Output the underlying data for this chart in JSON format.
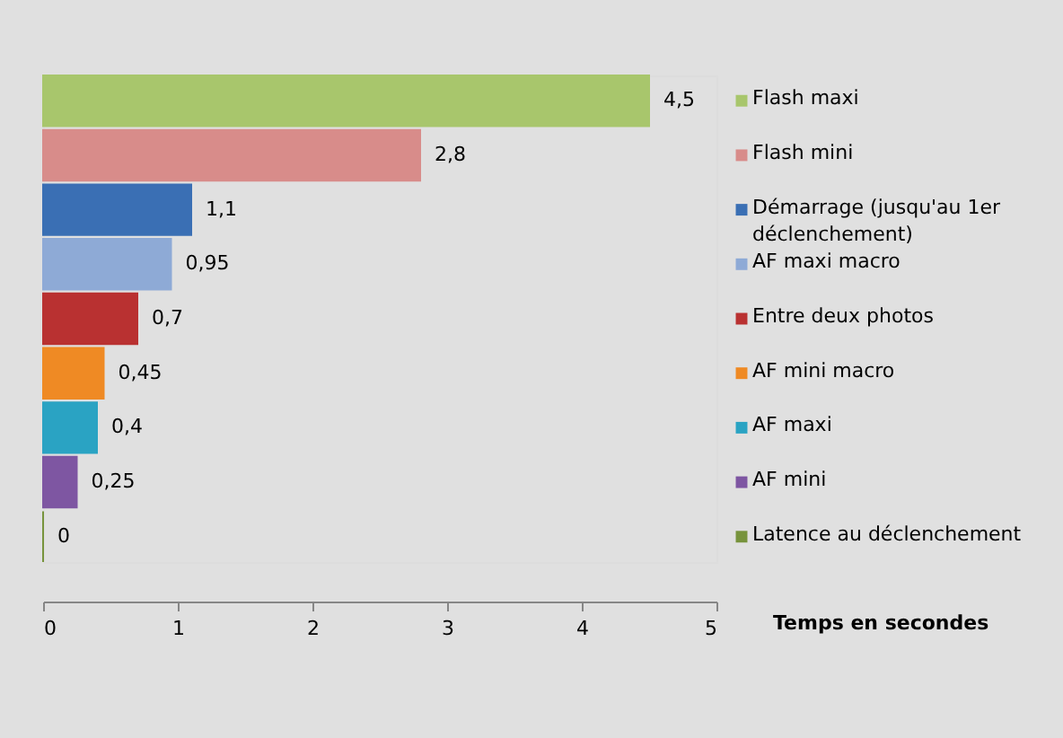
{
  "chart_data": {
    "type": "bar",
    "orientation": "horizontal",
    "xlabel": "Temps en secondes",
    "categories": [
      null
    ],
    "series": [
      {
        "name": "Flash maxi",
        "color": "#a8c66c",
        "values": [
          4.5
        ],
        "value_labels": [
          "4,5"
        ]
      },
      {
        "name": "Flash mini",
        "color": "#d88c8a",
        "values": [
          2.8
        ],
        "value_labels": [
          "2,8"
        ]
      },
      {
        "name": "Démarrage (jusqu'au 1er déclenchement)",
        "color": "#3a6fb4",
        "values": [
          1.1
        ],
        "value_labels": [
          "1,1"
        ]
      },
      {
        "name": "AF maxi macro",
        "color": "#8eaad6",
        "values": [
          0.95
        ],
        "value_labels": [
          "0,95"
        ]
      },
      {
        "name": "Entre deux photos",
        "color": "#b93131",
        "values": [
          0.7
        ],
        "value_labels": [
          "0,7"
        ]
      },
      {
        "name": "AF mini macro",
        "color": "#ef8a24",
        "values": [
          0.45
        ],
        "value_labels": [
          "0,45"
        ]
      },
      {
        "name": "AF maxi",
        "color": "#2aa3c3",
        "values": [
          0.4
        ],
        "value_labels": [
          "0,4"
        ]
      },
      {
        "name": "AF mini",
        "color": "#7e56a2",
        "values": [
          0.25
        ],
        "value_labels": [
          "0,25"
        ]
      },
      {
        "name": "Latence au déclenchement",
        "color": "#77933c",
        "values": [
          0
        ],
        "value_labels": [
          "0"
        ]
      }
    ],
    "xlim": [
      0,
      5
    ],
    "xticks": [
      0,
      1,
      2,
      3,
      4,
      5
    ],
    "legend": "right"
  }
}
